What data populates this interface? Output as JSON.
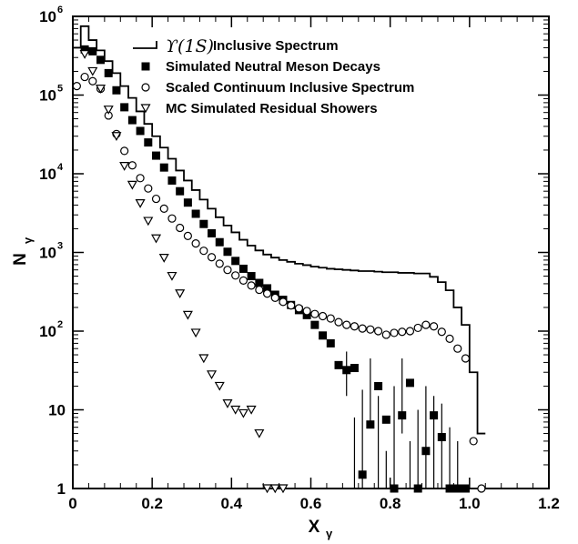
{
  "chart_data": {
    "type": "line",
    "xlabel": "X",
    "xlabel_sub": "γ",
    "ylabel": "N",
    "ylabel_sub": "γ",
    "xlim": [
      0,
      1.2
    ],
    "ylim": [
      1,
      1000000
    ],
    "yscale": "log",
    "grid": false,
    "legend_placement": "top-right",
    "x_ticks": [
      "0",
      "0.2",
      "0.4",
      "0.6",
      "0.8",
      "1.0",
      "1.2"
    ],
    "y_ticks": [
      {
        "base": "1",
        "exp": ""
      },
      {
        "base": "10",
        "exp": ""
      },
      {
        "base": "10",
        "exp": "2"
      },
      {
        "base": "10",
        "exp": "3"
      },
      {
        "base": "10",
        "exp": "4"
      },
      {
        "base": "10",
        "exp": "5"
      },
      {
        "base": "10",
        "exp": "6"
      }
    ],
    "legend": [
      {
        "key": "inclusive",
        "symbol": "line",
        "prefix": "ϒ(1S)",
        "label": " Inclusive Spectrum"
      },
      {
        "key": "neutral",
        "symbol": "filled-square",
        "prefix": "",
        "label": "Simulated Neutral Meson Decays"
      },
      {
        "key": "continuum",
        "symbol": "open-circle",
        "prefix": "",
        "label": "Scaled Continuum Inclusive Spectrum"
      },
      {
        "key": "residual",
        "symbol": "open-triangle-down",
        "prefix": "",
        "label": "MC Simulated Residual Showers"
      }
    ],
    "series": [
      {
        "key": "inclusive",
        "style": "step",
        "x": [
          0.0,
          0.02,
          0.04,
          0.06,
          0.08,
          0.1,
          0.12,
          0.14,
          0.16,
          0.18,
          0.2,
          0.22,
          0.24,
          0.26,
          0.28,
          0.3,
          0.32,
          0.34,
          0.36,
          0.38,
          0.4,
          0.42,
          0.44,
          0.46,
          0.48,
          0.5,
          0.52,
          0.54,
          0.56,
          0.58,
          0.6,
          0.62,
          0.64,
          0.66,
          0.68,
          0.7,
          0.72,
          0.74,
          0.76,
          0.78,
          0.8,
          0.82,
          0.84,
          0.86,
          0.88,
          0.9,
          0.92,
          0.94,
          0.96,
          0.98,
          1.0,
          1.02
        ],
        "y": [
          400000,
          750000,
          500000,
          370000,
          270000,
          190000,
          130000,
          92000,
          62000,
          43000,
          30000,
          21500,
          15500,
          11000,
          8200,
          6200,
          4700,
          3600,
          2800,
          2200,
          1800,
          1450,
          1220,
          1060,
          940,
          860,
          800,
          760,
          720,
          690,
          660,
          640,
          620,
          610,
          600,
          590,
          580,
          580,
          570,
          560,
          560,
          550,
          550,
          540,
          540,
          490,
          420,
          330,
          200,
          120,
          30,
          5
        ]
      },
      {
        "key": "neutral",
        "style": "filled-square",
        "x": [
          0.03,
          0.05,
          0.07,
          0.09,
          0.11,
          0.13,
          0.15,
          0.17,
          0.19,
          0.21,
          0.23,
          0.25,
          0.27,
          0.29,
          0.31,
          0.33,
          0.35,
          0.37,
          0.39,
          0.41,
          0.43,
          0.45,
          0.47,
          0.49,
          0.51,
          0.53,
          0.55,
          0.57,
          0.59,
          0.61,
          0.63,
          0.65,
          0.67,
          0.69,
          0.71,
          0.73,
          0.75,
          0.77,
          0.79,
          0.81,
          0.83,
          0.85,
          0.87,
          0.89,
          0.91,
          0.93,
          0.95,
          0.97,
          0.99
        ],
        "y": [
          380000,
          360000,
          280000,
          190000,
          115000,
          70000,
          48000,
          35000,
          25000,
          17000,
          12000,
          8200,
          6000,
          4300,
          3100,
          2300,
          1750,
          1350,
          1020,
          780,
          620,
          500,
          410,
          350,
          290,
          250,
          215,
          185,
          160,
          120,
          88,
          70,
          37,
          32,
          34,
          1.5,
          6.5,
          20,
          7.5,
          1,
          8.5,
          22,
          1,
          3,
          8.5,
          4.5,
          1,
          1,
          1
        ]
      },
      {
        "key": "continuum",
        "style": "open-circle",
        "x": [
          0.01,
          0.03,
          0.05,
          0.07,
          0.09,
          0.11,
          0.13,
          0.15,
          0.17,
          0.19,
          0.21,
          0.23,
          0.25,
          0.27,
          0.29,
          0.31,
          0.33,
          0.35,
          0.37,
          0.39,
          0.41,
          0.43,
          0.45,
          0.47,
          0.49,
          0.51,
          0.53,
          0.55,
          0.57,
          0.59,
          0.61,
          0.63,
          0.65,
          0.67,
          0.69,
          0.71,
          0.73,
          0.75,
          0.77,
          0.79,
          0.81,
          0.83,
          0.85,
          0.87,
          0.89,
          0.91,
          0.93,
          0.95,
          0.97,
          0.99,
          1.01,
          1.03
        ],
        "y": [
          130000,
          170000,
          150000,
          120000,
          55000,
          32000,
          19500,
          12800,
          8800,
          6500,
          4800,
          3600,
          2700,
          2050,
          1620,
          1300,
          1050,
          870,
          720,
          600,
          510,
          440,
          380,
          335,
          300,
          265,
          235,
          212,
          195,
          180,
          165,
          155,
          145,
          130,
          120,
          115,
          108,
          105,
          100,
          90,
          95,
          98,
          100,
          110,
          120,
          115,
          98,
          80,
          60,
          45,
          4,
          1
        ]
      },
      {
        "key": "residual",
        "style": "open-triangle-down",
        "x": [
          0.03,
          0.05,
          0.07,
          0.09,
          0.11,
          0.13,
          0.15,
          0.17,
          0.19,
          0.21,
          0.23,
          0.25,
          0.27,
          0.29,
          0.31,
          0.33,
          0.35,
          0.37,
          0.39,
          0.41,
          0.43,
          0.45,
          0.47,
          0.49,
          0.51,
          0.53
        ],
        "y": [
          330000,
          200000,
          120000,
          65000,
          30000,
          12500,
          7200,
          4200,
          2500,
          1500,
          850,
          500,
          300,
          160,
          95,
          45,
          28,
          20,
          12,
          10,
          9,
          10,
          5,
          1,
          1,
          1
        ]
      }
    ],
    "error_bars": [
      {
        "series": "neutral",
        "x": 0.69,
        "lo": 15,
        "hi": 55
      },
      {
        "series": "neutral",
        "x": 0.71,
        "lo": 1,
        "hi": 8
      },
      {
        "series": "neutral",
        "x": 0.73,
        "lo": 1,
        "hi": 18
      },
      {
        "series": "neutral",
        "x": 0.75,
        "lo": 6,
        "hi": 45
      },
      {
        "series": "neutral",
        "x": 0.77,
        "lo": 1,
        "hi": 15
      },
      {
        "series": "neutral",
        "x": 0.79,
        "lo": 1,
        "hi": 3
      },
      {
        "series": "neutral",
        "x": 0.81,
        "lo": 1,
        "hi": 20
      },
      {
        "series": "neutral",
        "x": 0.83,
        "lo": 5,
        "hi": 45
      },
      {
        "series": "neutral",
        "x": 0.85,
        "lo": 1,
        "hi": 4
      },
      {
        "series": "neutral",
        "x": 0.87,
        "lo": 1,
        "hi": 10
      },
      {
        "series": "neutral",
        "x": 0.89,
        "lo": 1,
        "hi": 20
      },
      {
        "series": "neutral",
        "x": 0.91,
        "lo": 1,
        "hi": 15
      },
      {
        "series": "neutral",
        "x": 0.93,
        "lo": 1,
        "hi": 12
      },
      {
        "series": "neutral",
        "x": 0.95,
        "lo": 1,
        "hi": 6
      },
      {
        "series": "neutral",
        "x": 0.97,
        "lo": 1,
        "hi": 4
      }
    ]
  }
}
